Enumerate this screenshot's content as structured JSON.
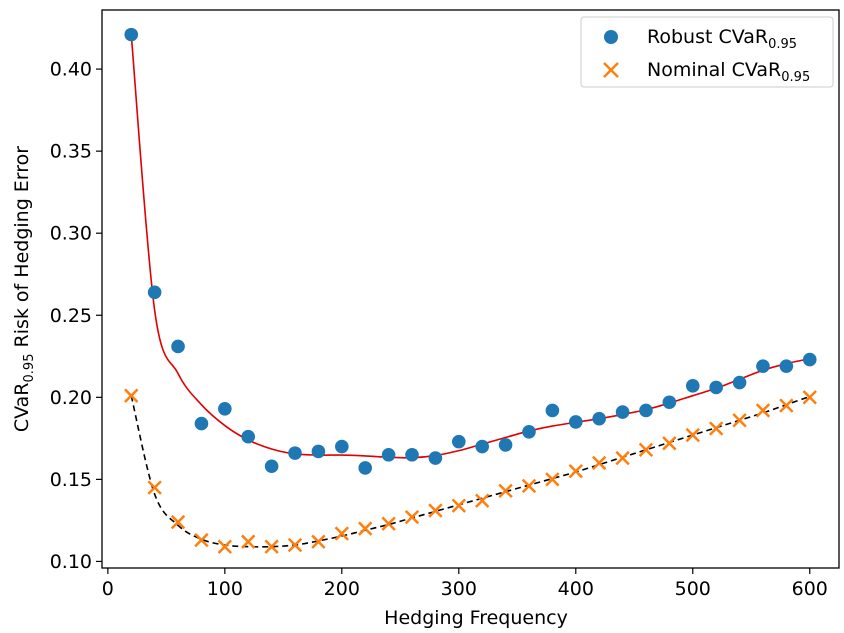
{
  "chart_data": {
    "type": "scatter",
    "xlabel": "Hedging Frequency",
    "ylabel": {
      "prefix": "CVaR",
      "sub": "0.95",
      "suffix": " Risk of Hedging Error"
    },
    "xlim": [
      -5,
      625
    ],
    "ylim": [
      0.096,
      0.436
    ],
    "xticks": [
      0,
      100,
      200,
      300,
      400,
      500,
      600
    ],
    "yticks": [
      0.1,
      0.15,
      0.2,
      0.25,
      0.3,
      0.35,
      0.4
    ],
    "ytick_labels": [
      "0.10",
      "0.15",
      "0.20",
      "0.25",
      "0.30",
      "0.35",
      "0.40"
    ],
    "legend_position": "top-right",
    "x": [
      20,
      40,
      60,
      80,
      100,
      120,
      140,
      160,
      180,
      200,
      220,
      240,
      260,
      280,
      300,
      320,
      340,
      360,
      380,
      400,
      420,
      440,
      460,
      480,
      500,
      520,
      540,
      560,
      580,
      600
    ],
    "series": [
      {
        "name": {
          "prefix": "Robust CVaR",
          "sub": "0.95"
        },
        "marker": "circle",
        "color": "#1f77b4",
        "values": [
          0.421,
          0.264,
          0.231,
          0.184,
          0.193,
          0.176,
          0.158,
          0.166,
          0.167,
          0.17,
          0.157,
          0.165,
          0.165,
          0.163,
          0.173,
          0.17,
          0.171,
          0.179,
          0.192,
          0.185,
          0.187,
          0.191,
          0.192,
          0.197,
          0.207,
          0.206,
          0.209,
          0.219,
          0.219,
          0.223
        ],
        "fit_color": "#e00000",
        "fit_style": "solid",
        "fit_values": [
          0.421,
          0.253,
          0.2145,
          0.1955,
          0.1828,
          0.174,
          0.1685,
          0.1655,
          0.1648,
          0.1648,
          0.1643,
          0.1635,
          0.1632,
          0.1645,
          0.1675,
          0.1715,
          0.1755,
          0.1795,
          0.1825,
          0.1848,
          0.187,
          0.1895,
          0.1925,
          0.1965,
          0.201,
          0.2055,
          0.211,
          0.2165,
          0.2205,
          0.2235
        ]
      },
      {
        "name": {
          "prefix": "Nominal CVaR",
          "sub": "0.95"
        },
        "marker": "x",
        "color": "#ff7f0e",
        "values": [
          0.201,
          0.145,
          0.124,
          0.113,
          0.109,
          0.112,
          0.109,
          0.11,
          0.112,
          0.117,
          0.12,
          0.123,
          0.127,
          0.131,
          0.134,
          0.137,
          0.143,
          0.146,
          0.15,
          0.155,
          0.16,
          0.163,
          0.168,
          0.172,
          0.177,
          0.181,
          0.186,
          0.192,
          0.195,
          0.2
        ],
        "fit_color": "#000000",
        "fit_style": "dashed",
        "fit_values": [
          0.201,
          0.141,
          0.122,
          0.1135,
          0.11,
          0.109,
          0.109,
          0.11,
          0.1125,
          0.1155,
          0.119,
          0.1225,
          0.1265,
          0.1305,
          0.1345,
          0.1385,
          0.1425,
          0.1465,
          0.1505,
          0.1545,
          0.159,
          0.1635,
          0.168,
          0.1725,
          0.177,
          0.1815,
          0.186,
          0.1905,
          0.1955,
          0.2005
        ]
      }
    ]
  }
}
